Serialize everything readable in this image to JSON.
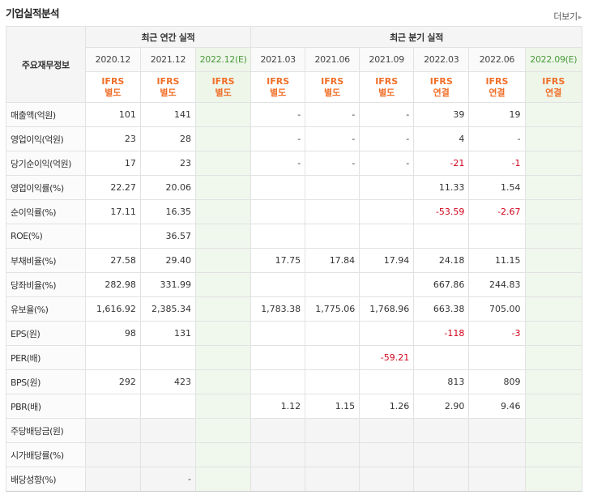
{
  "header": {
    "title": "기업실적분석",
    "more_label": "더보기",
    "more_arrow": "▸"
  },
  "table": {
    "row_header": "주요재무정보",
    "group_annual": "최근 연간 실적",
    "group_quarter": "최근 분기 실적",
    "periods": [
      {
        "label": "2020.12",
        "line1": "IFRS",
        "line2": "별도",
        "estimate": false
      },
      {
        "label": "2021.12",
        "line1": "IFRS",
        "line2": "별도",
        "estimate": false
      },
      {
        "label": "2022.12(E)",
        "line1": "IFRS",
        "line2": "별도",
        "estimate": true
      },
      {
        "label": "2021.03",
        "line1": "IFRS",
        "line2": "별도",
        "estimate": false
      },
      {
        "label": "2021.06",
        "line1": "IFRS",
        "line2": "별도",
        "estimate": false
      },
      {
        "label": "2021.09",
        "line1": "IFRS",
        "line2": "별도",
        "estimate": false
      },
      {
        "label": "2022.03",
        "line1": "IFRS",
        "line2": "연결",
        "estimate": false
      },
      {
        "label": "2022.06",
        "line1": "IFRS",
        "line2": "연결",
        "estimate": false
      },
      {
        "label": "2022.09(E)",
        "line1": "IFRS",
        "line2": "연결",
        "estimate": true
      }
    ],
    "rows": [
      {
        "label": "매출액(억원)",
        "values": [
          "101",
          "141",
          "",
          "-",
          "-",
          "-",
          "39",
          "19",
          ""
        ]
      },
      {
        "label": "영업이익(억원)",
        "values": [
          "23",
          "28",
          "",
          "-",
          "-",
          "-",
          "4",
          "-",
          ""
        ]
      },
      {
        "label": "당기순이익(억원)",
        "values": [
          "17",
          "23",
          "",
          "-",
          "-",
          "-",
          "-21",
          "-1",
          ""
        ]
      },
      {
        "label": "영업이익률(%)",
        "values": [
          "22.27",
          "20.06",
          "",
          "",
          "",
          "",
          "11.33",
          "1.54",
          ""
        ]
      },
      {
        "label": "순이익률(%)",
        "values": [
          "17.11",
          "16.35",
          "",
          "",
          "",
          "",
          "-53.59",
          "-2.67",
          ""
        ]
      },
      {
        "label": "ROE(%)",
        "values": [
          "",
          "36.57",
          "",
          "",
          "",
          "",
          "",
          "",
          ""
        ]
      },
      {
        "label": "부채비율(%)",
        "values": [
          "27.58",
          "29.40",
          "",
          "17.75",
          "17.84",
          "17.94",
          "24.18",
          "11.15",
          ""
        ]
      },
      {
        "label": "당좌비율(%)",
        "values": [
          "282.98",
          "331.99",
          "",
          "",
          "",
          "",
          "667.86",
          "244.83",
          ""
        ]
      },
      {
        "label": "유보율(%)",
        "values": [
          "1,616.92",
          "2,385.34",
          "",
          "1,783.38",
          "1,775.06",
          "1,768.96",
          "663.38",
          "705.00",
          ""
        ]
      },
      {
        "label": "EPS(원)",
        "values": [
          "98",
          "131",
          "",
          "",
          "",
          "",
          "-118",
          "-3",
          ""
        ]
      },
      {
        "label": "PER(배)",
        "values": [
          "",
          "",
          "",
          "",
          "",
          "-59.21",
          "",
          "",
          ""
        ]
      },
      {
        "label": "BPS(원)",
        "values": [
          "292",
          "423",
          "",
          "",
          "",
          "",
          "813",
          "809",
          ""
        ]
      },
      {
        "label": "PBR(배)",
        "values": [
          "",
          "",
          "",
          "1.12",
          "1.15",
          "1.26",
          "2.90",
          "9.46",
          ""
        ]
      },
      {
        "label": "주당배당금(원)",
        "values": [
          "",
          "",
          "",
          "",
          "",
          "",
          "",
          "",
          ""
        ]
      },
      {
        "label": "시가배당률(%)",
        "values": [
          "",
          "",
          "",
          "",
          "",
          "",
          "",
          "",
          ""
        ]
      },
      {
        "label": "배당성향(%)",
        "values": [
          "",
          "-",
          "",
          "",
          "",
          "",
          "",
          "",
          ""
        ]
      }
    ]
  },
  "colors": {
    "negative": "#d0021b",
    "ifrs": "#f06f28",
    "estimate_bg": "#f0f8ee"
  }
}
